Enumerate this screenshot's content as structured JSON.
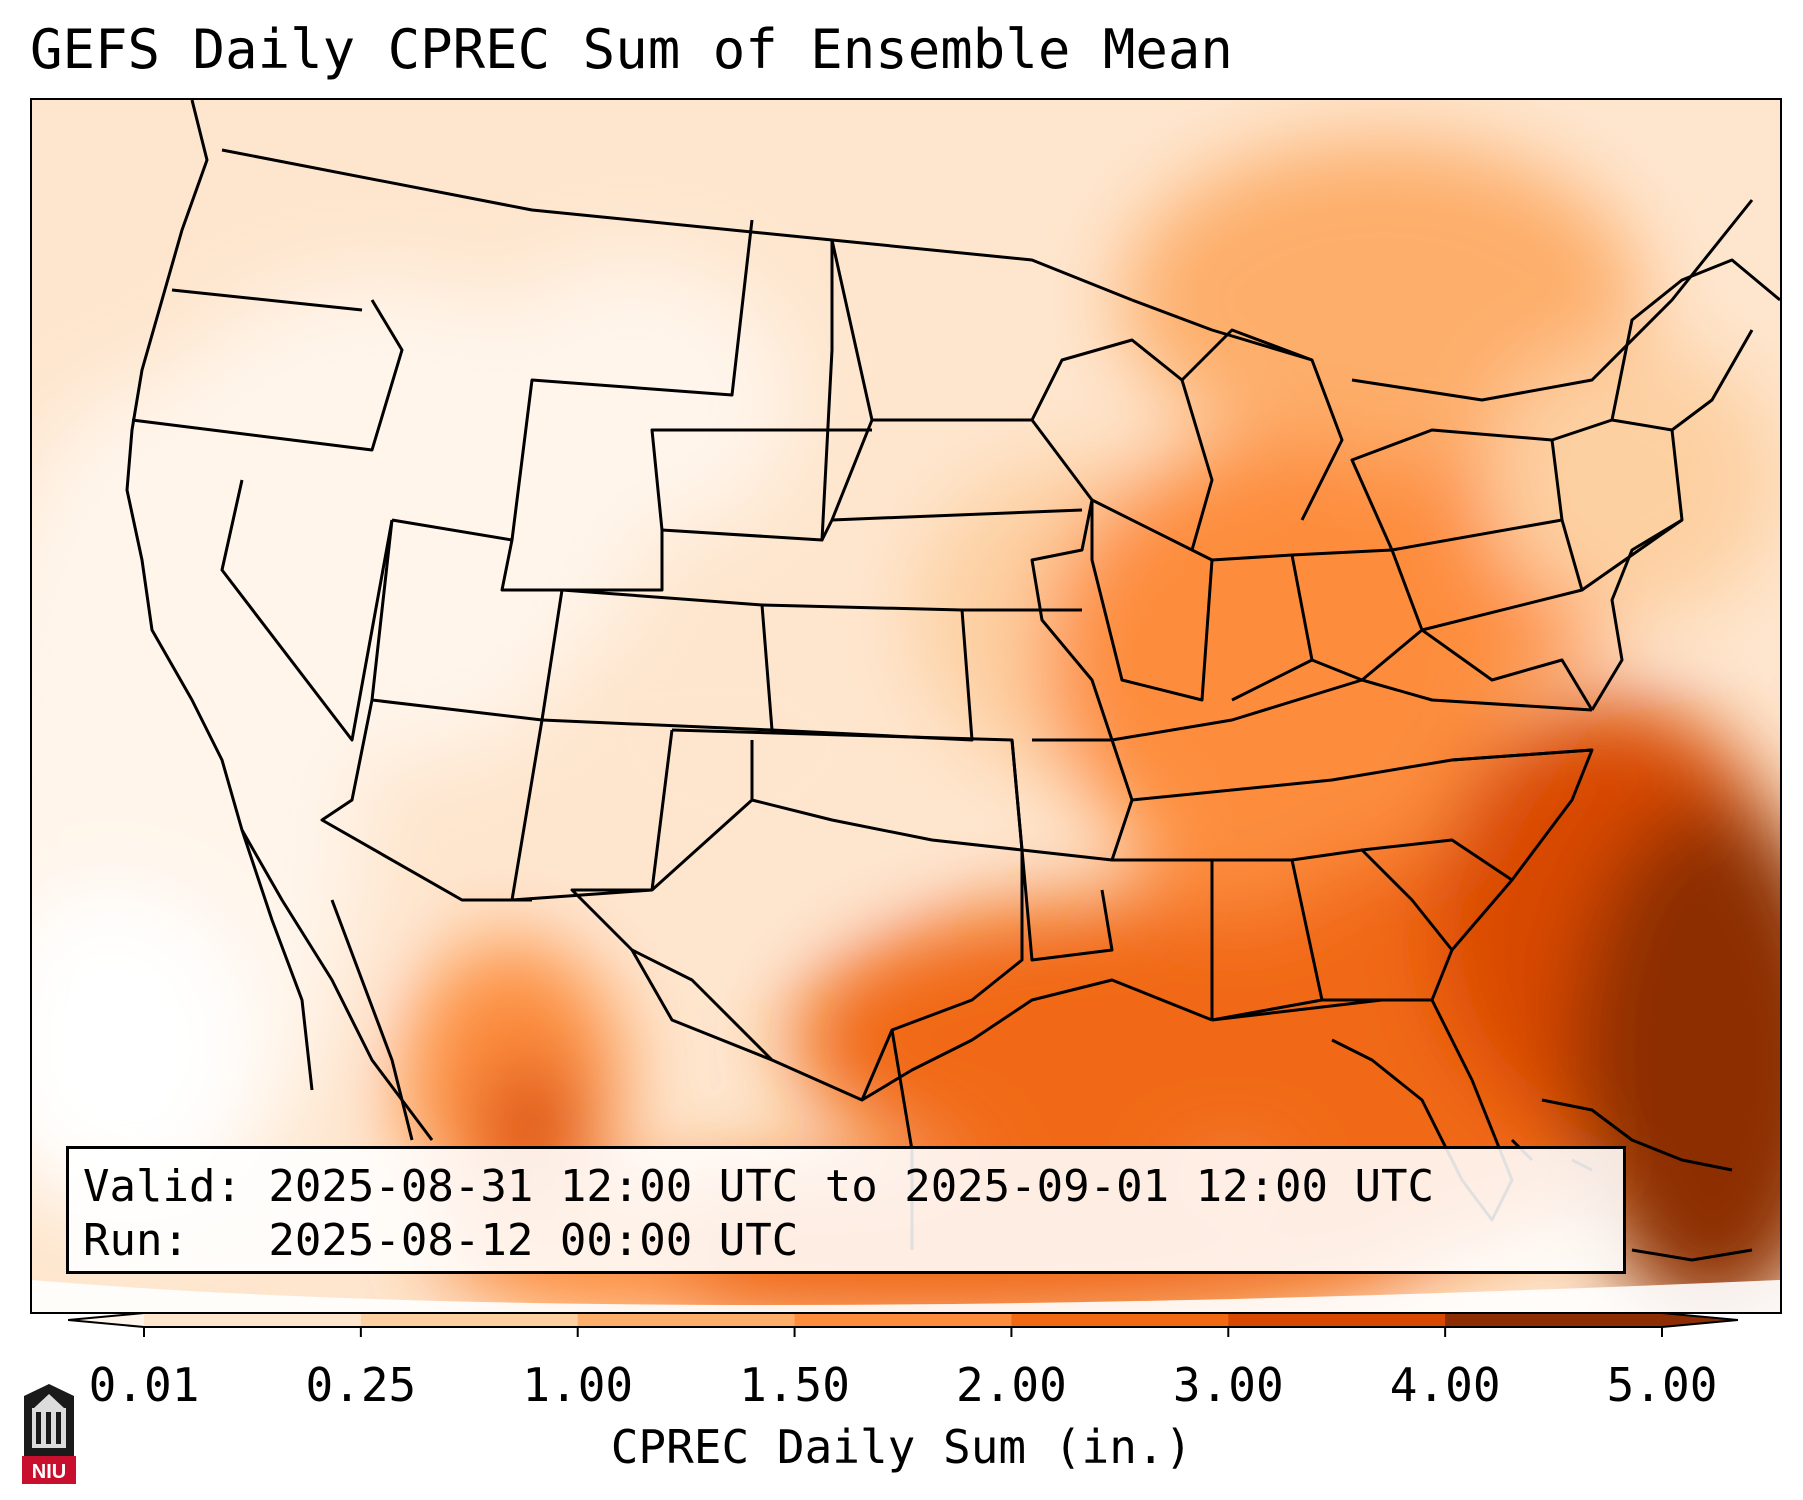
{
  "title": "GEFS Daily CPREC Sum of Ensemble Mean",
  "info": {
    "valid_line": "Valid: 2025-08-31 12:00 UTC to 2025-09-01 12:00 UTC",
    "run_line": "Run:   2025-08-12 00:00 UTC"
  },
  "colorbar": {
    "label": "CPREC Daily Sum (in.)",
    "ticks": [
      "0.01",
      "0.25",
      "1.00",
      "1.50",
      "2.00",
      "3.00",
      "4.00",
      "5.00"
    ],
    "colors": [
      "#fff5eb",
      "#fee6ce",
      "#fdd0a2",
      "#fdae6b",
      "#fd8d3c",
      "#f16913",
      "#d94801",
      "#8c2d04"
    ],
    "extend": "both"
  },
  "logo": {
    "icon": "niu-logo-icon",
    "text": "NIU",
    "color": "#c8102e"
  }
}
